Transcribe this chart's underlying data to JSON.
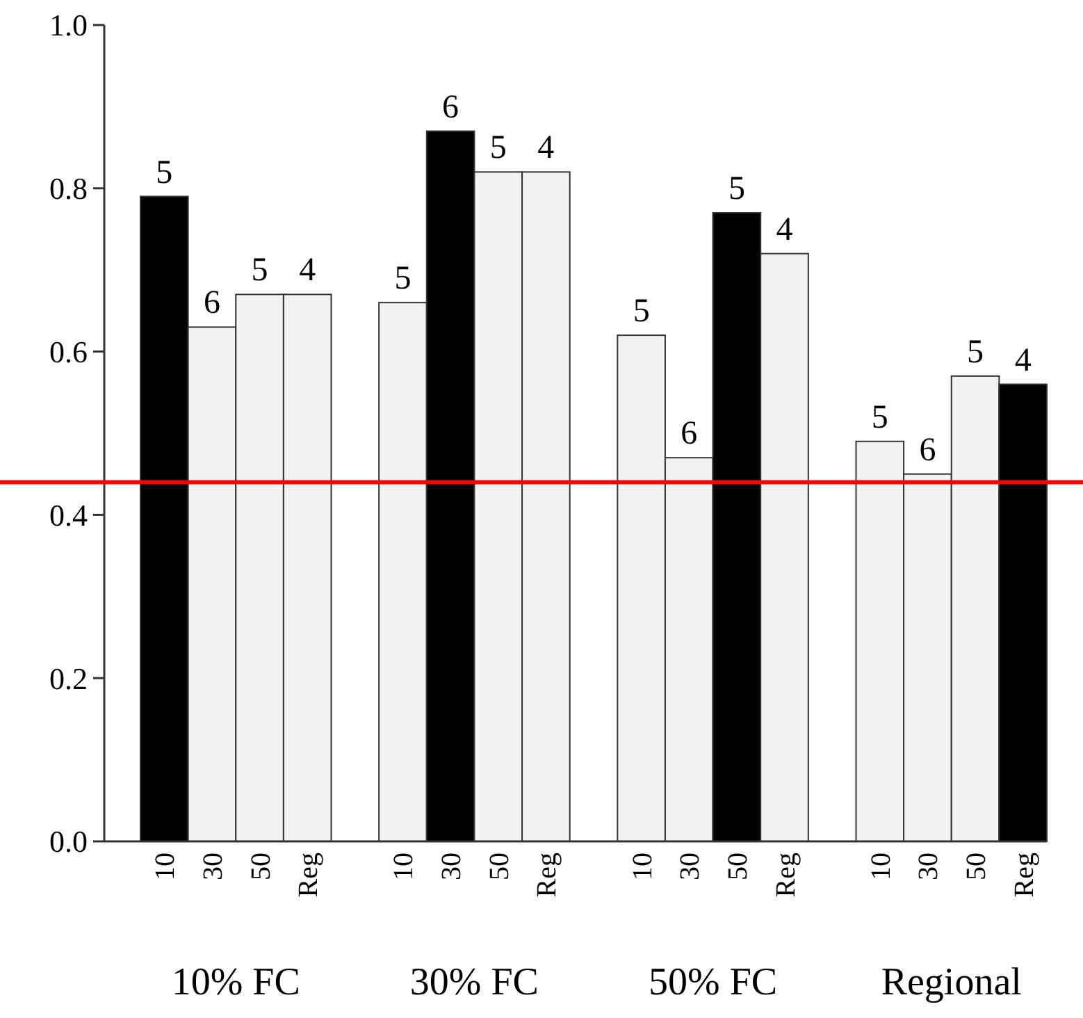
{
  "chart_data": {
    "type": "bar",
    "categories": [
      "10% FC",
      "30% FC",
      "50% FC",
      "Regional"
    ],
    "series": [
      {
        "name": "10",
        "values": [
          0.79,
          0.66,
          0.62,
          0.49
        ],
        "colors": [
          "#000000",
          "#f2f2f2",
          "#f2f2f2",
          "#f2f2f2"
        ]
      },
      {
        "name": "30",
        "values": [
          0.63,
          0.87,
          0.47,
          0.45
        ],
        "colors": [
          "#f2f2f2",
          "#000000",
          "#f2f2f2",
          "#f2f2f2"
        ]
      },
      {
        "name": "50",
        "values": [
          0.67,
          0.82,
          0.77,
          0.57
        ],
        "colors": [
          "#f2f2f2",
          "#f2f2f2",
          "#000000",
          "#f2f2f2"
        ]
      },
      {
        "name": "Reg",
        "values": [
          0.67,
          0.82,
          0.72,
          0.56
        ],
        "colors": [
          "#f2f2f2",
          "#f2f2f2",
          "#f2f2f2",
          "#000000"
        ]
      }
    ],
    "annotations": [
      "5",
      "6",
      "5",
      "4",
      "5",
      "6",
      "5",
      "4",
      "5",
      "6",
      "5",
      "4",
      "5",
      "6",
      "5",
      "4"
    ],
    "ylim": [
      0,
      1
    ],
    "yticks": [
      {
        "value": 0,
        "label": "0.0"
      },
      {
        "value": 0.2,
        "label": "0.2"
      },
      {
        "value": 0.4,
        "label": "0.4"
      },
      {
        "value": 0.6,
        "label": "0.6"
      },
      {
        "value": 0.8,
        "label": "0.8"
      },
      {
        "value": 1,
        "label": "1.0"
      }
    ],
    "ref_lines": [
      {
        "axis": "y",
        "value": 0.44,
        "color": "#ff0000"
      }
    ],
    "grid": false
  }
}
